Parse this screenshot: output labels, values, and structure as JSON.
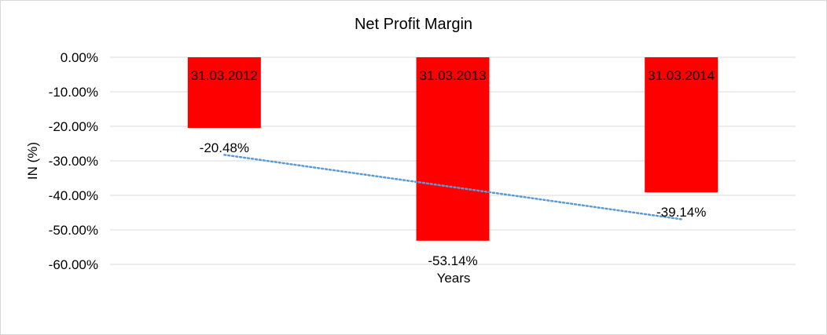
{
  "chart_data": {
    "type": "bar",
    "title": "Net Profit Margin",
    "xlabel": "Years",
    "ylabel": "IN (%)",
    "categories": [
      "31.03.2012",
      "31.03.2013",
      "31.03.2014"
    ],
    "values": [
      -20.48,
      -53.14,
      -39.14
    ],
    "data_labels": [
      "-20.48%",
      "-53.14%",
      "-39.14%"
    ],
    "ylim": [
      -60,
      0
    ],
    "yticks": [
      0,
      -10,
      -20,
      -30,
      -40,
      -50,
      -60
    ],
    "ytick_labels": [
      "0.00%",
      "-10.00%",
      "-20.00%",
      "-30.00%",
      "-40.00%",
      "-50.00%",
      "-60.00%"
    ],
    "grid": true,
    "legend": "none",
    "trendline": {
      "type": "linear",
      "style": "dotted"
    },
    "colors": {
      "bar": "#ff0000",
      "trendline": "#5b9bd5",
      "grid": "#d9d9d9"
    }
  }
}
